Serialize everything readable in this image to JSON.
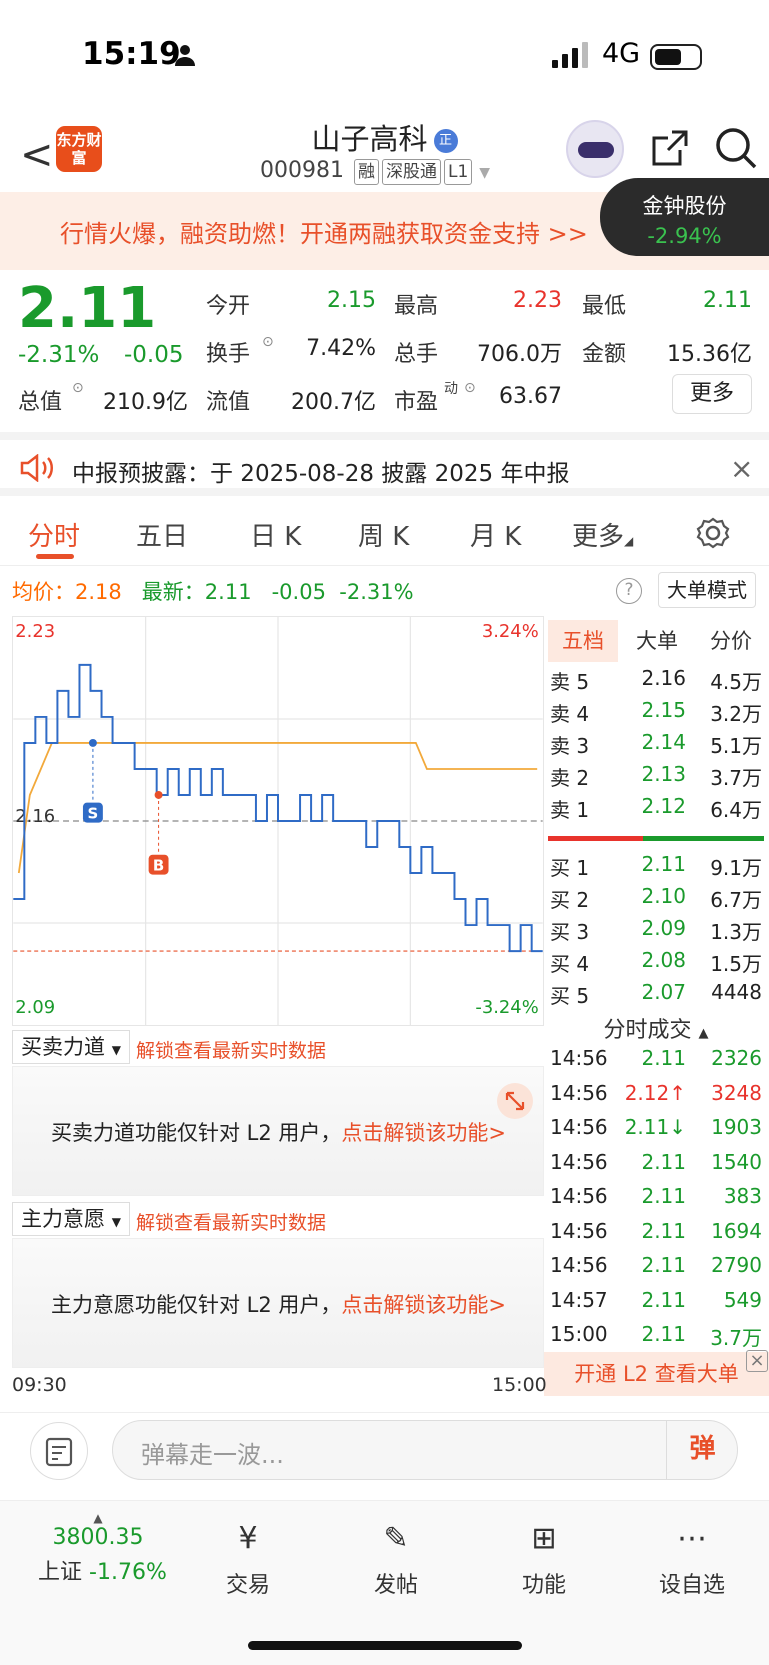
{
  "status": {
    "time": "15:19",
    "network": "4G"
  },
  "header": {
    "back": "<",
    "logo": "东方财富",
    "title": "山子高科",
    "title_badge": "正",
    "code": "000981",
    "tags": [
      "融",
      "深股通",
      "L1"
    ]
  },
  "banner": {
    "text": "行情火爆，融资助燃！开通两融获取资金支持 >>",
    "pill_name": "金钟股份",
    "pill_change": "-2.94%"
  },
  "quote": {
    "price": "2.11",
    "change_pct": "-2.31%",
    "change": "-0.05",
    "open_label": "今开",
    "open": "2.15",
    "high_label": "最高",
    "high": "2.23",
    "low_label": "最低",
    "low": "2.11",
    "turnover_label": "换手",
    "turnover": "7.42%",
    "volume_label": "总手",
    "volume": "706.0万",
    "amount_label": "金额",
    "amount": "15.36亿",
    "mktcap_label": "总值",
    "mktcap": "210.9亿",
    "float_label": "流值",
    "float": "200.7亿",
    "pe_label": "市盈",
    "pe_sup": "动",
    "pe": "63.67",
    "more": "更多"
  },
  "notice": {
    "text": "中报预披露：于 2025-08-28 披露 2025 年中报",
    "close": "×"
  },
  "tabs": [
    "分时",
    "五日",
    "日 K",
    "周 K",
    "月 K",
    "更多"
  ],
  "avg": {
    "avg_label": "均价：",
    "avg": "2.18",
    "latest_label": "最新：",
    "latest": "2.11",
    "chg": "-0.05",
    "pct": "-2.31%",
    "mode": "大单模式",
    "help": "?"
  },
  "chart_data": {
    "type": "line",
    "title": "",
    "xlabel": "",
    "ylabel": "",
    "ylim": [
      2.09,
      2.23
    ],
    "y_ticks": [
      "2.23",
      "2.16",
      "2.09"
    ],
    "right_ticks": [
      "3.24%",
      "-3.24%"
    ],
    "x_ticks": [
      "09:30",
      "15:00"
    ],
    "prev_close": 2.16,
    "last": 2.11,
    "series": [
      {
        "values": [
          2.13,
          2.19,
          2.2,
          2.19,
          2.21,
          2.2,
          2.22,
          2.21,
          2.2,
          2.19,
          2.19,
          2.18,
          2.18,
          2.17,
          2.18,
          2.17,
          2.18,
          2.17,
          2.18,
          2.17,
          2.17,
          2.17,
          2.16,
          2.17,
          2.16,
          2.16,
          2.17,
          2.16,
          2.17,
          2.16,
          2.16,
          2.16,
          2.15,
          2.16,
          2.16,
          2.15,
          2.14,
          2.15,
          2.14,
          2.14,
          2.13,
          2.12,
          2.13,
          2.12,
          2.12,
          2.11,
          2.12,
          2.11
        ]
      },
      {
        "values": [
          2.14,
          2.17,
          2.18,
          2.19,
          2.19,
          2.19,
          2.19,
          2.19,
          2.19,
          2.19,
          2.19,
          2.19,
          2.19,
          2.19,
          2.19,
          2.19,
          2.19,
          2.19,
          2.19,
          2.19,
          2.19,
          2.19,
          2.19,
          2.19,
          2.19,
          2.19,
          2.19,
          2.19,
          2.19,
          2.19,
          2.19,
          2.19,
          2.19,
          2.19,
          2.19,
          2.19,
          2.19,
          2.18,
          2.18,
          2.18,
          2.18,
          2.18,
          2.18,
          2.18,
          2.18,
          2.18,
          2.18,
          2.18
        ]
      }
    ],
    "markers": [
      {
        "label": "S",
        "value": 2.19
      },
      {
        "label": "B",
        "value": 2.17
      }
    ]
  },
  "book": {
    "tabs": [
      "五档",
      "大单",
      "分价"
    ],
    "sell": [
      {
        "l": "卖 5",
        "p": "2.16",
        "v": "4.5万"
      },
      {
        "l": "卖 4",
        "p": "2.15",
        "v": "3.2万"
      },
      {
        "l": "卖 3",
        "p": "2.14",
        "v": "5.1万"
      },
      {
        "l": "卖 2",
        "p": "2.13",
        "v": "3.7万"
      },
      {
        "l": "卖 1",
        "p": "2.12",
        "v": "6.4万"
      }
    ],
    "buy": [
      {
        "l": "买 1",
        "p": "2.11",
        "v": "9.1万"
      },
      {
        "l": "买 2",
        "p": "2.10",
        "v": "6.7万"
      },
      {
        "l": "买 3",
        "p": "2.09",
        "v": "1.3万"
      },
      {
        "l": "买 4",
        "p": "2.08",
        "v": "1.5万"
      },
      {
        "l": "买 5",
        "p": "2.07",
        "v": "4448"
      }
    ]
  },
  "ticks": {
    "title": "分时成交",
    "rows": [
      {
        "t": "14:56",
        "p": "2.11",
        "v": "2326"
      },
      {
        "t": "14:56",
        "p": "2.12↑",
        "v": "3248"
      },
      {
        "t": "14:56",
        "p": "2.11↓",
        "v": "1903"
      },
      {
        "t": "14:56",
        "p": "2.11",
        "v": "1540"
      },
      {
        "t": "14:56",
        "p": "2.11",
        "v": "383"
      },
      {
        "t": "14:56",
        "p": "2.11",
        "v": "1694"
      },
      {
        "t": "14:56",
        "p": "2.11",
        "v": "2790"
      },
      {
        "t": "14:57",
        "p": "2.11",
        "v": "549"
      },
      {
        "t": "15:00",
        "p": "2.11",
        "v": "3.7万"
      }
    ],
    "l2": "开通 L2 查看大单"
  },
  "panels": {
    "p1_title": "买卖力道",
    "p1_unlock": "解锁查看最新实时数据",
    "p1_msg": "买卖力道功能仅针对 L2 用户，",
    "p1_link": "点击解锁该功能>",
    "p2_title": "主力意愿",
    "p2_unlock": "解锁查看最新实时数据",
    "p2_msg": "主力意愿功能仅针对 L2 用户，",
    "p2_link": "点击解锁该功能>",
    "t_start": "09:30",
    "t_end": "15:00"
  },
  "comment": {
    "placeholder": "弹幕走一波...",
    "dan": "弹"
  },
  "nav": {
    "index_value": "3800.35",
    "index_name": "上证",
    "index_change": "-1.76%",
    "items": [
      "交易",
      "发帖",
      "功能",
      "设自选"
    ]
  }
}
